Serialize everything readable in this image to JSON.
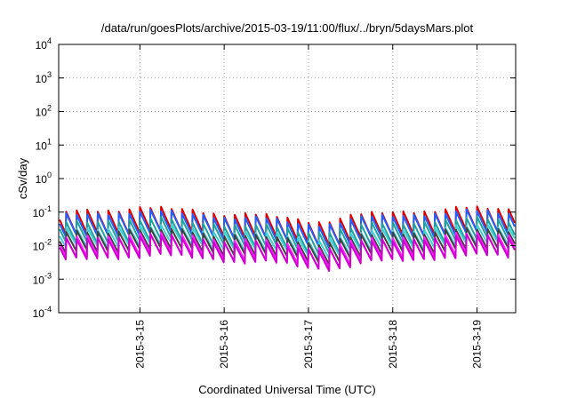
{
  "chart_data": {
    "type": "line",
    "title": "/data/run/goesPlots/archive/2015-03-19/11:00/flux/../bryn/5daysMars.plot",
    "xlabel": "Coordinated Universal Time (UTC)",
    "ylabel": "cSv/day",
    "y_scale": "log",
    "ylim": [
      0.0001,
      10000
    ],
    "y_ticks": [
      {
        "base": "10",
        "exp": "4"
      },
      {
        "base": "10",
        "exp": "3"
      },
      {
        "base": "10",
        "exp": "2"
      },
      {
        "base": "10",
        "exp": "1"
      },
      {
        "base": "10",
        "exp": "0"
      },
      {
        "base": "10",
        "exp": "-1"
      },
      {
        "base": "10",
        "exp": "-2"
      },
      {
        "base": "10",
        "exp": "-3"
      },
      {
        "base": "10",
        "exp": "-4"
      }
    ],
    "x_ticks": [
      "2015-3-15",
      "2015-3-16",
      "2015-3-17",
      "2015-3-18",
      "2015-3-19"
    ],
    "xlim_days": [
      "2015-3-14 00:52",
      "2015-3-19 11:00"
    ],
    "grid": true,
    "cycle_hours": 3,
    "series": [
      {
        "color": "#e00000",
        "peak_base": 0.095,
        "trough_base": 0.022
      },
      {
        "color": "#2060ff",
        "peak_base": 0.075,
        "trough_base": 0.019
      },
      {
        "color": "#20a0a0",
        "peak_base": 0.045,
        "trough_base": 0.012
      },
      {
        "color": "#40d0d0",
        "peak_base": 0.028,
        "trough_base": 0.009
      },
      {
        "color": "#404040",
        "peak_base": 0.022,
        "trough_base": 0.0065
      },
      {
        "color": "#ff20ff",
        "peak_base": 0.016,
        "trough_base": 0.0045
      },
      {
        "color": "#d000d0",
        "peak_base": 0.014,
        "trough_base": 0.004
      }
    ]
  }
}
